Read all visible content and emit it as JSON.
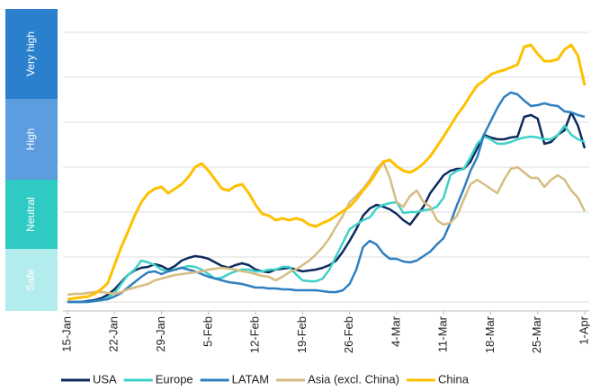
{
  "chart_data": {
    "type": "line",
    "categories": [
      "15-Jan",
      null,
      null,
      null,
      null,
      null,
      null,
      "22-Jan",
      null,
      null,
      null,
      null,
      null,
      null,
      "29-Jan",
      null,
      null,
      null,
      null,
      null,
      null,
      "5-Feb",
      null,
      null,
      null,
      null,
      null,
      null,
      "12-Feb",
      null,
      null,
      null,
      null,
      null,
      null,
      "19-Feb",
      null,
      null,
      null,
      null,
      null,
      null,
      "26-Feb",
      null,
      null,
      null,
      null,
      null,
      null,
      "4-Mar",
      null,
      null,
      null,
      null,
      null,
      null,
      "11-Mar",
      null,
      null,
      null,
      null,
      null,
      null,
      "18-Mar",
      null,
      null,
      null,
      null,
      null,
      null,
      "25-Mar",
      null,
      null,
      null,
      null,
      null,
      null,
      "1-Apr"
    ],
    "series": [
      {
        "name": "USA",
        "color": "#0d2b5e",
        "values": [
          0,
          0,
          0,
          1,
          2,
          4,
          8,
          14,
          22,
          30,
          35,
          38,
          39,
          42,
          40,
          36,
          40,
          46,
          49,
          51,
          50,
          48,
          44,
          40,
          38,
          41,
          43,
          41,
          36,
          34,
          33,
          36,
          37,
          38,
          36,
          34,
          35,
          36,
          38,
          41,
          46,
          56,
          68,
          81,
          96,
          104,
          108,
          106,
          103,
          98,
          91,
          86,
          96,
          106,
          121,
          131,
          141,
          146,
          148,
          148,
          156,
          171,
          186,
          183,
          181,
          181,
          183,
          184,
          206,
          208,
          204,
          176,
          178,
          186,
          191,
          211,
          196,
          171
        ]
      },
      {
        "name": "Europe",
        "color": "#3fd0c9",
        "values": [
          0,
          0,
          0,
          0,
          1,
          2,
          5,
          10,
          20,
          30,
          36,
          46,
          44,
          41,
          36,
          34,
          36,
          38,
          40,
          39,
          36,
          31,
          26,
          27,
          31,
          34,
          36,
          36,
          34,
          34,
          36,
          36,
          39,
          39,
          31,
          24,
          23,
          23,
          26,
          36,
          51,
          66,
          81,
          86,
          91,
          94,
          104,
          108,
          110,
          111,
          99,
          100,
          100,
          102,
          103,
          106,
          116,
          141,
          146,
          148,
          161,
          176,
          184,
          181,
          176,
          176,
          178,
          181,
          183,
          184,
          183,
          181,
          181,
          186,
          196,
          186,
          181,
          178
        ]
      },
      {
        "name": "LATAM",
        "color": "#2f7fc1",
        "values": [
          0,
          0,
          0,
          0,
          1,
          2,
          3,
          6,
          10,
          16,
          22,
          28,
          33,
          34,
          31,
          34,
          36,
          38,
          36,
          34,
          31,
          28,
          26,
          24,
          22,
          21,
          20,
          18,
          16,
          16,
          15,
          15,
          14,
          14,
          13,
          13,
          13,
          13,
          12,
          11,
          11,
          13,
          20,
          36,
          61,
          68,
          64,
          54,
          48,
          48,
          45,
          44,
          46,
          51,
          56,
          64,
          71,
          88,
          108,
          126,
          146,
          161,
          186,
          201,
          216,
          228,
          233,
          231,
          224,
          218,
          219,
          221,
          219,
          218,
          212,
          211,
          208,
          206
        ]
      },
      {
        "name": "Asia (excl. China)",
        "color": "#d6bd82",
        "values": [
          8,
          9,
          9,
          10,
          11,
          11,
          10,
          9,
          11,
          14,
          16,
          18,
          20,
          24,
          26,
          28,
          30,
          31,
          32,
          33,
          34,
          36,
          37,
          38,
          37,
          36,
          34,
          33,
          31,
          29,
          28,
          24,
          28,
          33,
          36,
          41,
          46,
          53,
          61,
          71,
          84,
          96,
          111,
          118,
          126,
          136,
          148,
          156,
          138,
          111,
          106,
          118,
          124,
          111,
          106,
          91,
          86,
          88,
          96,
          114,
          131,
          136,
          131,
          126,
          121,
          136,
          148,
          150,
          144,
          138,
          138,
          128,
          136,
          141,
          136,
          124,
          116,
          101
        ]
      },
      {
        "name": "China",
        "color": "#ffc000",
        "values": [
          3,
          4,
          5,
          6,
          9,
          14,
          21,
          41,
          61,
          78,
          96,
          111,
          121,
          126,
          128,
          121,
          126,
          131,
          139,
          150,
          154,
          146,
          136,
          126,
          124,
          129,
          131,
          121,
          108,
          98,
          96,
          91,
          93,
          91,
          93,
          91,
          86,
          84,
          88,
          91,
          96,
          101,
          106,
          114,
          124,
          133,
          144,
          156,
          158,
          151,
          146,
          144,
          148,
          154,
          162,
          173,
          184,
          196,
          208,
          218,
          230,
          241,
          246,
          253,
          256,
          258,
          261,
          264,
          284,
          286,
          276,
          268,
          268,
          270,
          281,
          286,
          274,
          241
        ]
      }
    ],
    "ylim": [
      -10,
      326
    ],
    "gridlines": [
      0,
      50,
      100,
      150,
      200,
      250,
      300
    ],
    "zones": [
      {
        "label": "Very high",
        "from": 226,
        "to": 326,
        "color": "#2a80cc"
      },
      {
        "label": "High",
        "from": 136,
        "to": 226,
        "color": "#5b9ddf"
      },
      {
        "label": "Neutral",
        "from": 59,
        "to": 136,
        "color": "#2fcac3"
      },
      {
        "label": "Safe",
        "from": -10,
        "to": 59,
        "color": "#b3ecec"
      }
    ]
  }
}
